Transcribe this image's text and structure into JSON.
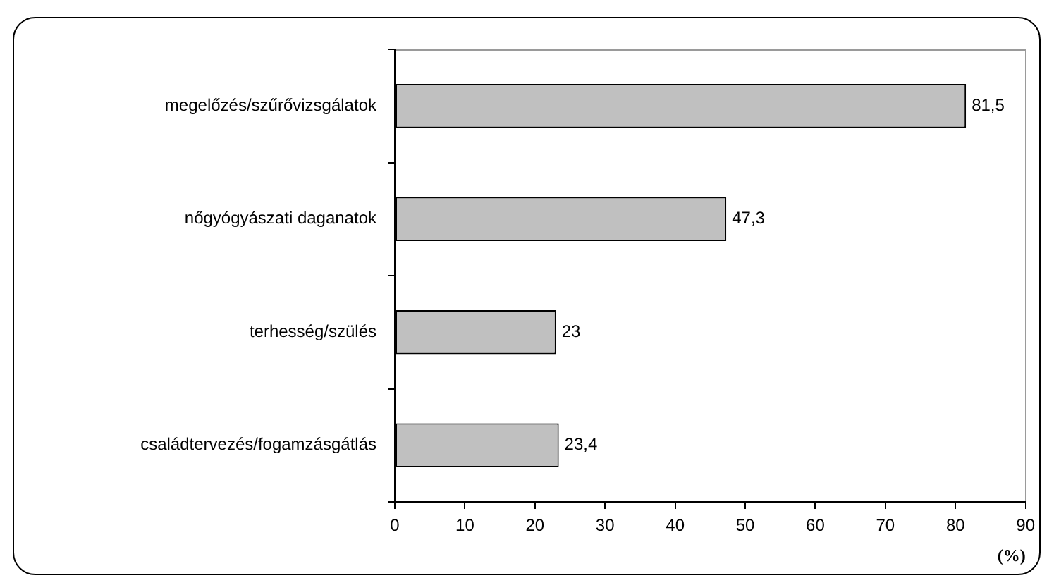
{
  "chart_data": {
    "type": "bar",
    "orientation": "horizontal",
    "categories": [
      "megelőzés/szűrővizsgálatok",
      "nőgyógyászati daganatok",
      "terhesség/szülés",
      "családtervezés/fogamzásgátlás"
    ],
    "values": [
      81.5,
      47.3,
      23,
      23.4
    ],
    "color": "#c0c0c0",
    "value_labels": [
      "81,5",
      "47,3",
      "23",
      "23,4"
    ],
    "xlabel": "(%)",
    "xlim": [
      0,
      90
    ],
    "xticks": [
      0,
      10,
      20,
      30,
      40,
      50,
      60,
      70,
      80,
      90
    ],
    "grid": false,
    "legend": false
  }
}
